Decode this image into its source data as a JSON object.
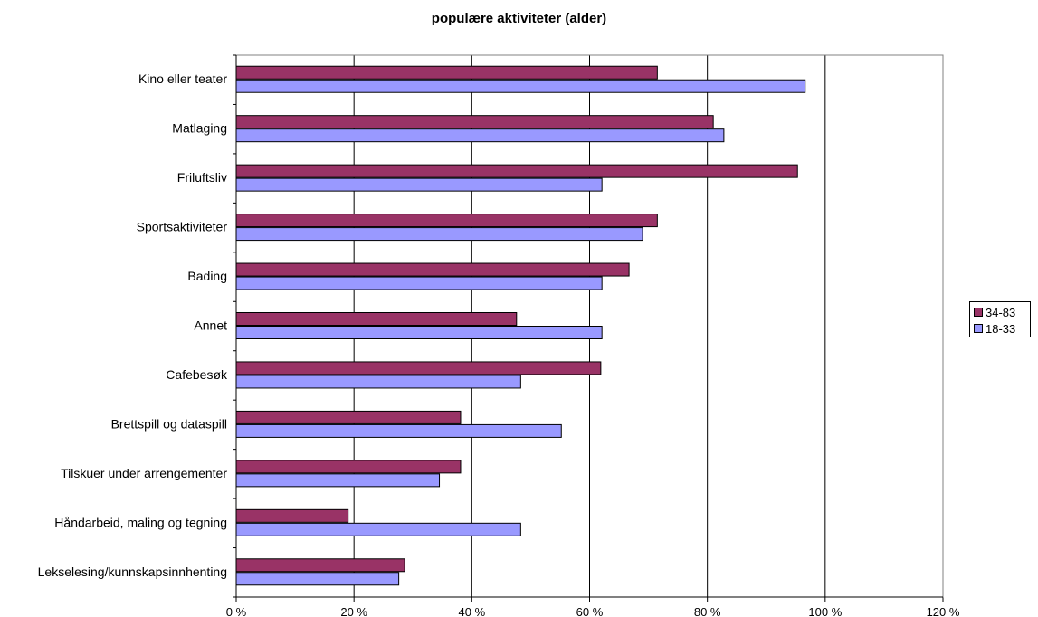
{
  "chart_data": {
    "type": "bar",
    "orientation": "horizontal",
    "title": "populære aktiviteter  (alder)",
    "categories": [
      "Kino eller teater",
      "Matlaging",
      "Friluftsliv",
      "Sportsaktiviteter",
      "Bading",
      "Annet",
      "Cafebesøk",
      "Brettspill og dataspill",
      "Tilskuer under arrengementer",
      "Håndarbeid, maling og tegning",
      "Lekselesing/kunnskapsinnhenting"
    ],
    "series": [
      {
        "name": "34-83",
        "color": "#993366",
        "values": [
          71.5,
          81,
          95.3,
          71.5,
          66.7,
          47.6,
          61.9,
          38.1,
          38.1,
          19,
          28.6
        ]
      },
      {
        "name": "18-33",
        "color": "#9999ff",
        "values": [
          96.6,
          82.8,
          62.1,
          69,
          62.1,
          62.1,
          48.3,
          55.2,
          34.5,
          48.3,
          27.6
        ]
      }
    ],
    "xlim": [
      0,
      120
    ],
    "xticks": [
      "0 %",
      "20 %",
      "40 %",
      "60 %",
      "80 %",
      "100 %",
      "120 %"
    ],
    "grid": true,
    "legend_position": "right"
  }
}
